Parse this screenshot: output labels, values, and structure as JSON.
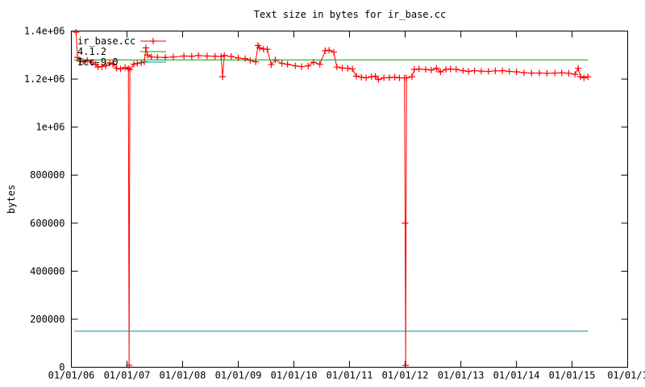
{
  "chart_data": {
    "type": "line",
    "title": "Text size in bytes for ir_base.cc",
    "xlabel": "",
    "ylabel": "bytes",
    "ylim": [
      0,
      1400000
    ],
    "xlim": [
      "2006-01-01",
      "2016-01-01"
    ],
    "grid": false,
    "legend_position": "top-left",
    "yticks": [
      {
        "value": 0,
        "label": "0"
      },
      {
        "value": 200000,
        "label": "200000"
      },
      {
        "value": 400000,
        "label": "400000"
      },
      {
        "value": 600000,
        "label": "600000"
      },
      {
        "value": 800000,
        "label": "800000"
      },
      {
        "value": 1000000,
        "label": "1e+06"
      },
      {
        "value": 1200000,
        "label": "1.2e+06"
      },
      {
        "value": 1400000,
        "label": "1.4e+06"
      }
    ],
    "xticks": [
      {
        "value": "2006-01-01",
        "label": "01/01/06"
      },
      {
        "value": "2007-01-01",
        "label": "01/01/07"
      },
      {
        "value": "2008-01-01",
        "label": "01/01/08"
      },
      {
        "value": "2009-01-01",
        "label": "01/01/09"
      },
      {
        "value": "2010-01-01",
        "label": "01/01/10"
      },
      {
        "value": "2011-01-01",
        "label": "01/01/11"
      },
      {
        "value": "2012-01-01",
        "label": "01/01/12"
      },
      {
        "value": "2013-01-01",
        "label": "01/01/13"
      },
      {
        "value": "2014-01-01",
        "label": "01/01/14"
      },
      {
        "value": "2015-01-01",
        "label": "01/01/15"
      },
      {
        "value": "2016-01-01",
        "label": "01/01/1"
      }
    ],
    "series": [
      {
        "name": "ir_base.cc",
        "color": "#ff0000",
        "style": "linespoints",
        "marker": "plus",
        "points": [
          [
            "2006-02-01",
            1395000
          ],
          [
            "2006-02-10",
            1290000
          ],
          [
            "2006-02-25",
            1275000
          ],
          [
            "2006-03-20",
            1272000
          ],
          [
            "2006-04-15",
            1278000
          ],
          [
            "2006-05-15",
            1270000
          ],
          [
            "2006-06-10",
            1262000
          ],
          [
            "2006-06-25",
            1250000
          ],
          [
            "2006-07-20",
            1252000
          ],
          [
            "2006-08-15",
            1255000
          ],
          [
            "2006-09-10",
            1268000
          ],
          [
            "2006-10-01",
            1262000
          ],
          [
            "2006-10-25",
            1245000
          ],
          [
            "2006-11-20",
            1242000
          ],
          [
            "2006-12-20",
            1248000
          ],
          [
            "2007-01-10",
            1244000
          ],
          [
            "2007-01-15",
            8000
          ],
          [
            "2007-01-20",
            1240000
          ],
          [
            "2007-02-15",
            1262000
          ],
          [
            "2007-03-10",
            1265000
          ],
          [
            "2007-04-05",
            1268000
          ],
          [
            "2007-04-25",
            1272000
          ],
          [
            "2007-05-05",
            1330000
          ],
          [
            "2007-05-15",
            1300000
          ],
          [
            "2007-06-10",
            1292000
          ],
          [
            "2007-07-20",
            1291000
          ],
          [
            "2007-09-10",
            1290000
          ],
          [
            "2007-11-01",
            1292000
          ],
          [
            "2008-01-10",
            1296000
          ],
          [
            "2008-03-01",
            1295000
          ],
          [
            "2008-04-15",
            1298000
          ],
          [
            "2008-06-10",
            1296000
          ],
          [
            "2008-08-01",
            1295000
          ],
          [
            "2008-09-10",
            1294000
          ],
          [
            "2008-09-20",
            1210000
          ],
          [
            "2008-10-01",
            1298000
          ],
          [
            "2008-11-15",
            1294000
          ],
          [
            "2009-01-01",
            1288000
          ],
          [
            "2009-02-15",
            1285000
          ],
          [
            "2009-03-20",
            1278000
          ],
          [
            "2009-04-25",
            1272000
          ],
          [
            "2009-05-10",
            1340000
          ],
          [
            "2009-05-20",
            1330000
          ],
          [
            "2009-06-15",
            1325000
          ],
          [
            "2009-07-10",
            1324000
          ],
          [
            "2009-08-05",
            1260000
          ],
          [
            "2009-09-01",
            1280000
          ],
          [
            "2009-10-15",
            1265000
          ],
          [
            "2009-11-20",
            1262000
          ],
          [
            "2010-01-10",
            1255000
          ],
          [
            "2010-02-20",
            1252000
          ],
          [
            "2010-04-05",
            1255000
          ],
          [
            "2010-05-10",
            1270000
          ],
          [
            "2010-06-20",
            1262000
          ],
          [
            "2010-07-25",
            1318000
          ],
          [
            "2010-08-20",
            1320000
          ],
          [
            "2010-09-20",
            1312000
          ],
          [
            "2010-10-10",
            1250000
          ],
          [
            "2010-11-15",
            1246000
          ],
          [
            "2010-12-20",
            1245000
          ],
          [
            "2011-01-20",
            1242000
          ],
          [
            "2011-02-15",
            1212000
          ],
          [
            "2011-03-20",
            1208000
          ],
          [
            "2011-04-20",
            1205000
          ],
          [
            "2011-05-25",
            1210000
          ],
          [
            "2011-06-20",
            1212000
          ],
          [
            "2011-07-10",
            1198000
          ],
          [
            "2011-08-15",
            1205000
          ],
          [
            "2011-09-20",
            1206000
          ],
          [
            "2011-10-25",
            1208000
          ],
          [
            "2011-11-25",
            1205000
          ],
          [
            "2011-12-28",
            1205000
          ],
          [
            "2012-01-01",
            600000
          ],
          [
            "2012-01-05",
            8000
          ],
          [
            "2012-01-10",
            1205000
          ],
          [
            "2012-02-15",
            1210000
          ],
          [
            "2012-03-01",
            1240000
          ],
          [
            "2012-04-01",
            1242000
          ],
          [
            "2012-05-15",
            1240000
          ],
          [
            "2012-06-20",
            1238000
          ],
          [
            "2012-07-25",
            1245000
          ],
          [
            "2012-08-20",
            1230000
          ],
          [
            "2012-09-25",
            1240000
          ],
          [
            "2012-10-25",
            1242000
          ],
          [
            "2012-12-01",
            1240000
          ],
          [
            "2013-01-15",
            1235000
          ],
          [
            "2013-02-20",
            1232000
          ],
          [
            "2013-04-01",
            1235000
          ],
          [
            "2013-05-15",
            1233000
          ],
          [
            "2013-07-01",
            1232000
          ],
          [
            "2013-08-15",
            1234000
          ],
          [
            "2013-10-01",
            1235000
          ],
          [
            "2013-11-15",
            1232000
          ],
          [
            "2014-01-01",
            1230000
          ],
          [
            "2014-02-20",
            1226000
          ],
          [
            "2014-04-10",
            1225000
          ],
          [
            "2014-06-01",
            1225000
          ],
          [
            "2014-07-20",
            1224000
          ],
          [
            "2014-09-10",
            1225000
          ],
          [
            "2014-10-25",
            1226000
          ],
          [
            "2014-12-10",
            1224000
          ],
          [
            "2015-01-20",
            1220000
          ],
          [
            "2015-02-10",
            1245000
          ],
          [
            "2015-02-25",
            1210000
          ],
          [
            "2015-03-20",
            1205000
          ],
          [
            "2015-04-15",
            1210000
          ]
        ]
      },
      {
        "name": "4.1.2",
        "color": "#00a000",
        "style": "line",
        "points": [
          [
            "2006-01-20",
            1280000
          ],
          [
            "2015-04-15",
            1280000
          ]
        ]
      },
      {
        "name": "Icc-9.0",
        "color": "#0090a0",
        "style": "line",
        "points": [
          [
            "2006-01-20",
            150000
          ],
          [
            "2015-04-15",
            150000
          ]
        ]
      }
    ]
  }
}
